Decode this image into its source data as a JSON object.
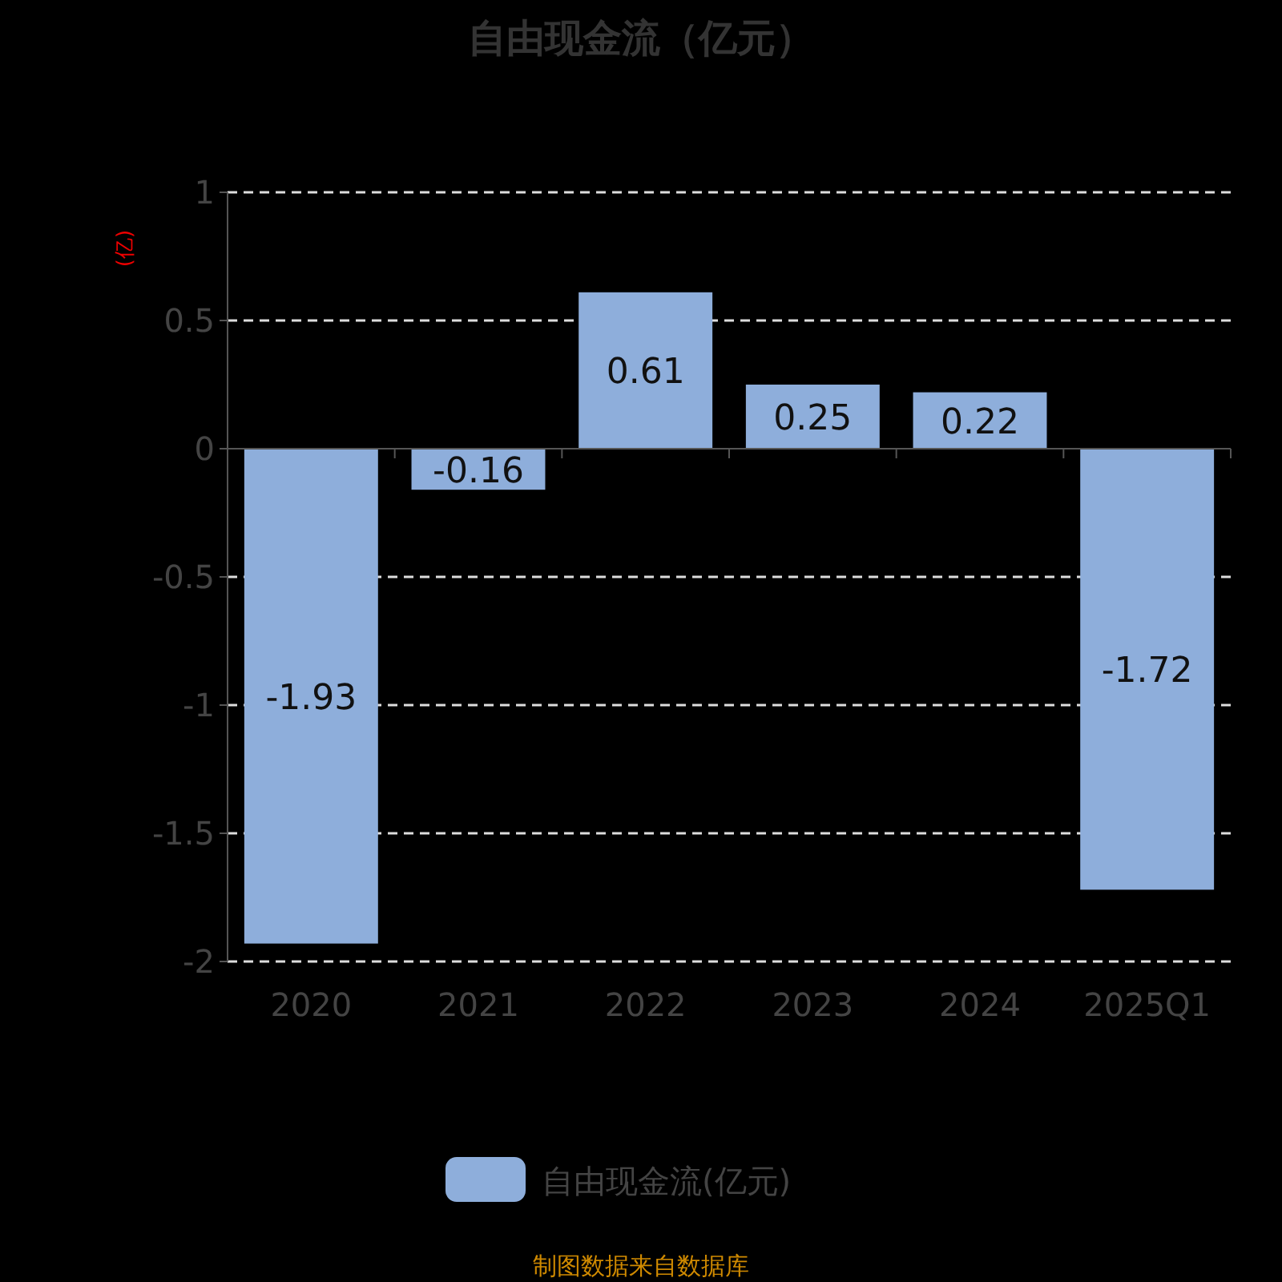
{
  "chart_data": {
    "type": "bar",
    "title": "自由现金流（亿元）",
    "ylabel": "(亿)",
    "categories": [
      "2020",
      "2021",
      "2022",
      "2023",
      "2024",
      "2025Q1"
    ],
    "series": [
      {
        "name": "自由现金流(亿元)",
        "color": "#8eaedb",
        "values": [
          -1.93,
          -0.16,
          0.61,
          0.25,
          0.22,
          -1.72
        ]
      }
    ],
    "ylim": [
      -2,
      1
    ],
    "yticks": [
      -2,
      -1.5,
      -1,
      -0.5,
      0,
      0.5,
      1
    ],
    "grid": "y",
    "legend": "bottom",
    "data_labels": true,
    "annotations": [
      "制图数据来自数据库"
    ]
  }
}
